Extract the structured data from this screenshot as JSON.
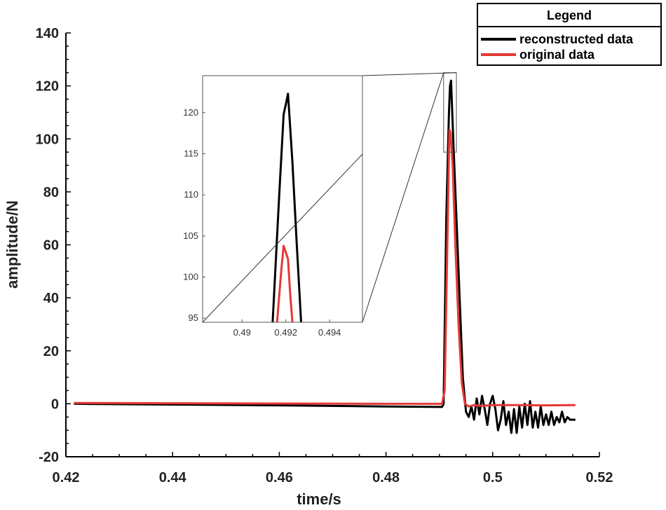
{
  "chart_data": {
    "type": "line",
    "title": "",
    "xlabel": "time/s",
    "ylabel": "amplitude/N",
    "xlim": [
      0.42,
      0.52
    ],
    "ylim": [
      -20,
      140
    ],
    "xticks": [
      0.42,
      0.44,
      0.46,
      0.48,
      0.5,
      0.52
    ],
    "xtick_labels": [
      "0.42",
      "0.44",
      "0.46",
      "0.48",
      "0.5",
      "0.52"
    ],
    "yticks": [
      -20,
      0,
      20,
      40,
      60,
      80,
      100,
      120,
      140
    ],
    "ytick_labels": [
      "-20",
      "0",
      "20",
      "40",
      "60",
      "80",
      "100",
      "120",
      "140"
    ],
    "grid": false,
    "legend": {
      "title": "Legend",
      "position": "top-right",
      "entries": [
        "reconstructed data",
        "original data"
      ]
    },
    "series": [
      {
        "name": "reconstructed data",
        "color": "#000000",
        "points": [
          [
            0.4215,
            0.0
          ],
          [
            0.44,
            -0.3
          ],
          [
            0.46,
            -0.6
          ],
          [
            0.48,
            -1.0
          ],
          [
            0.4905,
            -1.2
          ],
          [
            0.4908,
            0.0
          ],
          [
            0.4913,
            70.0
          ],
          [
            0.4918,
            110.0
          ],
          [
            0.492,
            120.0
          ],
          [
            0.4922,
            122.0
          ],
          [
            0.4926,
            100.0
          ],
          [
            0.4932,
            70.0
          ],
          [
            0.4938,
            40.0
          ],
          [
            0.4944,
            10.0
          ],
          [
            0.495,
            -3.0
          ],
          [
            0.4955,
            -5.0
          ],
          [
            0.496,
            -1.0
          ],
          [
            0.4965,
            -6.0
          ],
          [
            0.497,
            2.0
          ],
          [
            0.4975,
            -4.0
          ],
          [
            0.498,
            3.0
          ],
          [
            0.4985,
            -2.0
          ],
          [
            0.499,
            -8.0
          ],
          [
            0.4995,
            0.0
          ],
          [
            0.5,
            3.0
          ],
          [
            0.5005,
            -2.0
          ],
          [
            0.501,
            -10.0
          ],
          [
            0.5015,
            -6.0
          ],
          [
            0.502,
            1.0
          ],
          [
            0.5025,
            -8.0
          ],
          [
            0.503,
            -3.0
          ],
          [
            0.5035,
            -11.0
          ],
          [
            0.504,
            -2.0
          ],
          [
            0.5045,
            -11.0
          ],
          [
            0.505,
            -1.0
          ],
          [
            0.5055,
            -9.0
          ],
          [
            0.506,
            0.0
          ],
          [
            0.5065,
            -8.0
          ],
          [
            0.507,
            1.0
          ],
          [
            0.5075,
            -9.0
          ],
          [
            0.508,
            -3.0
          ],
          [
            0.5085,
            -9.0
          ],
          [
            0.509,
            -1.0
          ],
          [
            0.5095,
            -8.0
          ],
          [
            0.51,
            -4.0
          ],
          [
            0.5105,
            -8.0
          ],
          [
            0.511,
            -3.0
          ],
          [
            0.5115,
            -8.0
          ],
          [
            0.512,
            -5.0
          ],
          [
            0.5125,
            -7.0
          ],
          [
            0.513,
            -3.0
          ],
          [
            0.5135,
            -7.0
          ],
          [
            0.514,
            -5.0
          ],
          [
            0.5145,
            -6.0
          ],
          [
            0.515,
            -6.0
          ],
          [
            0.5155,
            -6.0
          ]
        ]
      },
      {
        "name": "original data",
        "color": "#e53935",
        "points": [
          [
            0.4215,
            0.3
          ],
          [
            0.44,
            0.2
          ],
          [
            0.46,
            0.1
          ],
          [
            0.48,
            0.0
          ],
          [
            0.4905,
            0.0
          ],
          [
            0.491,
            5.0
          ],
          [
            0.4915,
            60.0
          ],
          [
            0.4918,
            95.0
          ],
          [
            0.4919,
            103.5
          ],
          [
            0.4921,
            102.0
          ],
          [
            0.4925,
            90.0
          ],
          [
            0.493,
            60.0
          ],
          [
            0.4936,
            30.0
          ],
          [
            0.4942,
            8.0
          ],
          [
            0.4948,
            0.0
          ],
          [
            0.4955,
            -1.0
          ],
          [
            0.4965,
            -0.5
          ],
          [
            0.498,
            -0.8
          ],
          [
            0.5,
            -0.5
          ],
          [
            0.505,
            -0.5
          ],
          [
            0.51,
            -0.6
          ],
          [
            0.5155,
            -0.5
          ]
        ]
      }
    ],
    "inset": {
      "xlim": [
        0.4882,
        0.4955
      ],
      "ylim": [
        94.5,
        124.5
      ],
      "xticks": [
        0.49,
        0.492,
        0.494
      ],
      "xtick_labels": [
        "0.49",
        "0.492",
        "0.494"
      ],
      "yticks": [
        95,
        100,
        105,
        110,
        115,
        120
      ],
      "ytick_labels": [
        "95",
        "100",
        "105",
        "110",
        "115",
        "120"
      ],
      "zoom_region": {
        "xlim": [
          0.4908,
          0.4932
        ],
        "ylim": [
          95,
          125
        ]
      },
      "series": [
        {
          "name": "reconstructed data",
          "color": "#000000",
          "points": [
            [
              0.4914,
              94.5
            ],
            [
              0.4917,
              110.0
            ],
            [
              0.4919,
              119.8
            ],
            [
              0.492,
              121.0
            ],
            [
              0.4921,
              122.3
            ],
            [
              0.4923,
              114.0
            ],
            [
              0.4925,
              104.0
            ],
            [
              0.4927,
              94.5
            ]
          ]
        },
        {
          "name": "original data",
          "color": "#e53935",
          "points": [
            [
              0.4916,
              94.5
            ],
            [
              0.4918,
              101.0
            ],
            [
              0.4919,
              103.8
            ],
            [
              0.492,
              103.0
            ],
            [
              0.4921,
              102.2
            ],
            [
              0.4922,
              98.0
            ],
            [
              0.4923,
              94.5
            ]
          ]
        }
      ]
    }
  }
}
